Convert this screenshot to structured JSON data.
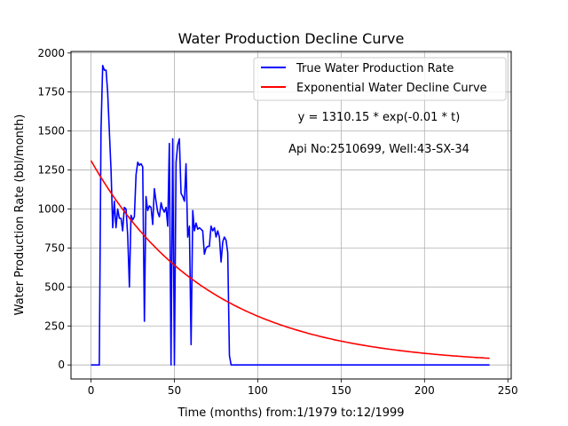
{
  "chart_data": {
    "type": "line",
    "title": "Water Production Decline Curve",
    "xlabel": "Time (months) from:1/1979 to:12/1999",
    "ylabel": "Water Production Rate (bbl/month)",
    "xlim": [
      -12,
      252
    ],
    "ylim": [
      -90,
      2010
    ],
    "xticks": [
      0,
      50,
      100,
      150,
      200,
      250
    ],
    "yticks": [
      0,
      250,
      500,
      750,
      1000,
      1250,
      1500,
      1750,
      2000
    ],
    "grid": true,
    "legend_position": "top-right",
    "annotations": [
      "y = 1310.15 * exp(-0.01 * t)",
      "Api No:2510699, Well:43-SX-34"
    ],
    "series": [
      {
        "name": "True Water Production Rate",
        "color": "#0000ff",
        "points": [
          [
            0,
            0
          ],
          [
            5,
            0
          ],
          [
            6,
            1500
          ],
          [
            7,
            1920
          ],
          [
            8,
            1890
          ],
          [
            9,
            1890
          ],
          [
            10,
            1750
          ],
          [
            11,
            1500
          ],
          [
            12,
            1250
          ],
          [
            13,
            880
          ],
          [
            14,
            1050
          ],
          [
            15,
            880
          ],
          [
            16,
            1000
          ],
          [
            17,
            940
          ],
          [
            18,
            940
          ],
          [
            19,
            860
          ],
          [
            20,
            1010
          ],
          [
            21,
            1000
          ],
          [
            22,
            830
          ],
          [
            23,
            500
          ],
          [
            24,
            960
          ],
          [
            25,
            930
          ],
          [
            26,
            950
          ],
          [
            27,
            1220
          ],
          [
            28,
            1300
          ],
          [
            29,
            1280
          ],
          [
            30,
            1290
          ],
          [
            31,
            1270
          ],
          [
            32,
            280
          ],
          [
            33,
            1080
          ],
          [
            34,
            990
          ],
          [
            35,
            1020
          ],
          [
            36,
            1010
          ],
          [
            37,
            900
          ],
          [
            38,
            1130
          ],
          [
            39,
            1050
          ],
          [
            40,
            980
          ],
          [
            41,
            950
          ],
          [
            42,
            1040
          ],
          [
            43,
            1000
          ],
          [
            44,
            980
          ],
          [
            45,
            1010
          ],
          [
            46,
            890
          ],
          [
            47,
            1420
          ],
          [
            48,
            0
          ],
          [
            49,
            1450
          ],
          [
            50,
            0
          ],
          [
            51,
            1300
          ],
          [
            52,
            1410
          ],
          [
            53,
            1450
          ],
          [
            54,
            1100
          ],
          [
            55,
            1080
          ],
          [
            56,
            1050
          ],
          [
            57,
            1290
          ],
          [
            58,
            820
          ],
          [
            59,
            890
          ],
          [
            60,
            130
          ],
          [
            61,
            990
          ],
          [
            62,
            860
          ],
          [
            63,
            910
          ],
          [
            64,
            870
          ],
          [
            65,
            880
          ],
          [
            66,
            870
          ],
          [
            67,
            860
          ],
          [
            68,
            710
          ],
          [
            69,
            750
          ],
          [
            70,
            760
          ],
          [
            71,
            760
          ],
          [
            72,
            890
          ],
          [
            73,
            860
          ],
          [
            74,
            880
          ],
          [
            75,
            820
          ],
          [
            76,
            860
          ],
          [
            77,
            820
          ],
          [
            78,
            660
          ],
          [
            79,
            790
          ],
          [
            80,
            820
          ],
          [
            81,
            800
          ],
          [
            82,
            720
          ],
          [
            83,
            60
          ],
          [
            84,
            0
          ],
          [
            239,
            0
          ]
        ]
      },
      {
        "name": "Exponential Water Decline Curve",
        "color": "#ff0000",
        "a": 1310.15,
        "b": 0.01433,
        "x_range": [
          0,
          239
        ]
      }
    ]
  }
}
